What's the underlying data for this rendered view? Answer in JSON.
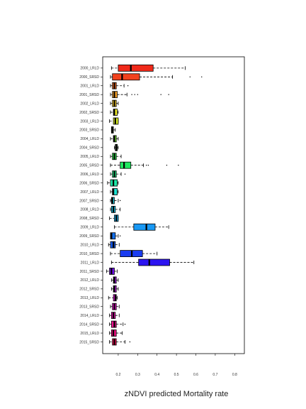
{
  "chart_data": {
    "type": "boxplot",
    "orientation": "horizontal",
    "title": "",
    "xlabel": "zNDVI predicted Mortality rate",
    "ylabel": "",
    "xlim": [
      0.12,
      0.85
    ],
    "xticks": [
      0.2,
      0.3,
      0.4,
      0.5,
      0.6,
      0.7,
      0.8
    ],
    "xtick_labels": [
      "0.2",
      "0.3",
      "0.4",
      "0.5",
      "0.6",
      "0.7",
      "0.8"
    ],
    "grid": false,
    "legend": "none",
    "boxes": [
      {
        "label": "2015_SRSD",
        "min": 0.155,
        "q1": 0.17,
        "median": 0.18,
        "q3": 0.19,
        "max": 0.235,
        "outliers": [
          0.26
        ],
        "color": "#ee0a50"
      },
      {
        "label": "2015_LRLD",
        "min": 0.155,
        "q1": 0.165,
        "median": 0.175,
        "q3": 0.19,
        "max": 0.22,
        "outliers": [],
        "color": "#ee1080"
      },
      {
        "label": "2014_SRSD",
        "min": 0.155,
        "q1": 0.165,
        "median": 0.18,
        "q3": 0.19,
        "max": 0.225,
        "outliers": [
          0.235
        ],
        "color": "#ee1490"
      },
      {
        "label": "2014_LRLD",
        "min": 0.155,
        "q1": 0.165,
        "median": 0.175,
        "q3": 0.185,
        "max": 0.205,
        "outliers": [],
        "color": "#ea12b0"
      },
      {
        "label": "2013_SRSD",
        "min": 0.16,
        "q1": 0.17,
        "median": 0.18,
        "q3": 0.19,
        "max": 0.205,
        "outliers": [],
        "color": "#e412c8"
      },
      {
        "label": "2013_LRLD",
        "min": 0.15,
        "q1": 0.175,
        "median": 0.185,
        "q3": 0.19,
        "max": 0.195,
        "outliers": [],
        "color": "#dc14d8"
      },
      {
        "label": "2012_SRSD",
        "min": 0.165,
        "q1": 0.175,
        "median": 0.18,
        "q3": 0.19,
        "max": 0.2,
        "outliers": [],
        "color": "#b814e0"
      },
      {
        "label": "2012_LRLD",
        "min": 0.165,
        "q1": 0.175,
        "median": 0.18,
        "q3": 0.19,
        "max": 0.2,
        "outliers": [],
        "color": "#9e14e0"
      },
      {
        "label": "2011_SRSD",
        "min": 0.14,
        "q1": 0.155,
        "median": 0.165,
        "q3": 0.18,
        "max": 0.195,
        "outliers": [],
        "color": "#6e10e6"
      },
      {
        "label": "2011_LRLD",
        "min": 0.165,
        "q1": 0.305,
        "median": 0.36,
        "q3": 0.465,
        "max": 0.59,
        "outliers": [],
        "color": "#2c14f0"
      },
      {
        "label": "2010_SRSD",
        "min": 0.16,
        "q1": 0.21,
        "median": 0.27,
        "q3": 0.325,
        "max": 0.4,
        "outliers": [],
        "color": "#1a3cf0"
      },
      {
        "label": "2010_LRLD",
        "min": 0.15,
        "q1": 0.16,
        "median": 0.175,
        "q3": 0.185,
        "max": 0.205,
        "outliers": [],
        "color": "#1458ec"
      },
      {
        "label": "2009_SRSD",
        "min": 0.16,
        "q1": 0.16,
        "median": 0.165,
        "q3": 0.185,
        "max": 0.2,
        "outliers": [
          0.21
        ],
        "color": "#1470ec"
      },
      {
        "label": "2009_LRLD",
        "min": 0.18,
        "q1": 0.28,
        "median": 0.345,
        "q3": 0.39,
        "max": 0.46,
        "outliers": [],
        "color": "#1898f4"
      },
      {
        "label": "2008_SRSD",
        "min": 0.155,
        "q1": 0.18,
        "median": 0.19,
        "q3": 0.2,
        "max": 0.2,
        "outliers": [],
        "color": "#22b0ec"
      },
      {
        "label": "2008_LRLD",
        "min": 0.16,
        "q1": 0.165,
        "median": 0.175,
        "q3": 0.185,
        "max": 0.21,
        "outliers": [],
        "color": "#1ec8ec"
      },
      {
        "label": "2007_SRSD",
        "min": 0.16,
        "q1": 0.165,
        "median": 0.17,
        "q3": 0.18,
        "max": 0.2,
        "outliers": [
          0.21
        ],
        "color": "#1ed4ea"
      },
      {
        "label": "2007_LRLD",
        "min": 0.16,
        "q1": 0.17,
        "median": 0.175,
        "q3": 0.195,
        "max": 0.2,
        "outliers": [],
        "color": "#1ee0d0"
      },
      {
        "label": "2006_SRSD",
        "min": 0.145,
        "q1": 0.16,
        "median": 0.175,
        "q3": 0.195,
        "max": 0.2,
        "outliers": [],
        "color": "#1ee8a8"
      },
      {
        "label": "2006_LRLD",
        "min": 0.16,
        "q1": 0.17,
        "median": 0.18,
        "q3": 0.19,
        "max": 0.215,
        "outliers": [
          0.235
        ],
        "color": "#1ee880"
      },
      {
        "label": "2005_SRSD",
        "min": 0.16,
        "q1": 0.21,
        "median": 0.23,
        "q3": 0.265,
        "max": 0.33,
        "outliers": [
          0.345,
          0.355,
          0.45,
          0.51
        ],
        "color": "#20e860"
      },
      {
        "label": "2005_LRLD",
        "min": 0.16,
        "q1": 0.17,
        "median": 0.18,
        "q3": 0.19,
        "max": 0.215,
        "outliers": [],
        "color": "#28e048"
      },
      {
        "label": "2004_SRSD",
        "min": 0.18,
        "q1": 0.185,
        "median": 0.19,
        "q3": 0.195,
        "max": 0.2,
        "outliers": [],
        "color": "#44e030"
      },
      {
        "label": "2004_LRLD",
        "min": 0.16,
        "q1": 0.175,
        "median": 0.18,
        "q3": 0.19,
        "max": 0.2,
        "outliers": [],
        "color": "#70e028"
      },
      {
        "label": "2003_SRSD",
        "min": 0.165,
        "q1": 0.165,
        "median": 0.17,
        "q3": 0.175,
        "max": 0.185,
        "outliers": [],
        "color": "#98e428"
      },
      {
        "label": "2003_LRLD",
        "min": 0.155,
        "q1": 0.175,
        "median": 0.185,
        "q3": 0.2,
        "max": 0.2,
        "outliers": [],
        "color": "#d8ee28"
      },
      {
        "label": "2002_SRSD",
        "min": 0.16,
        "q1": 0.175,
        "median": 0.18,
        "q3": 0.195,
        "max": 0.2,
        "outliers": [],
        "color": "#f2ee28"
      },
      {
        "label": "2002_LRLD",
        "min": 0.16,
        "q1": 0.17,
        "median": 0.18,
        "q3": 0.19,
        "max": 0.2,
        "outliers": [],
        "color": "#f4c828"
      },
      {
        "label": "2001_SRSD",
        "min": 0.16,
        "q1": 0.17,
        "median": 0.18,
        "q3": 0.195,
        "max": 0.245,
        "outliers": [
          0.27,
          0.285,
          0.3,
          0.42,
          0.46
        ],
        "color": "#f4a028"
      },
      {
        "label": "2001_LRLD",
        "min": 0.16,
        "q1": 0.17,
        "median": 0.18,
        "q3": 0.19,
        "max": 0.23,
        "outliers": [
          0.25
        ],
        "color": "#f46a24"
      },
      {
        "label": "2000_SRSD",
        "min": 0.16,
        "q1": 0.17,
        "median": 0.22,
        "q3": 0.31,
        "max": 0.48,
        "outliers": [
          0.57,
          0.63
        ],
        "color": "#f2421e"
      },
      {
        "label": "2000_LRLD",
        "min": 0.165,
        "q1": 0.2,
        "median": 0.265,
        "q3": 0.38,
        "max": 0.545,
        "outliers": [],
        "color": "#f02a1a"
      }
    ]
  }
}
